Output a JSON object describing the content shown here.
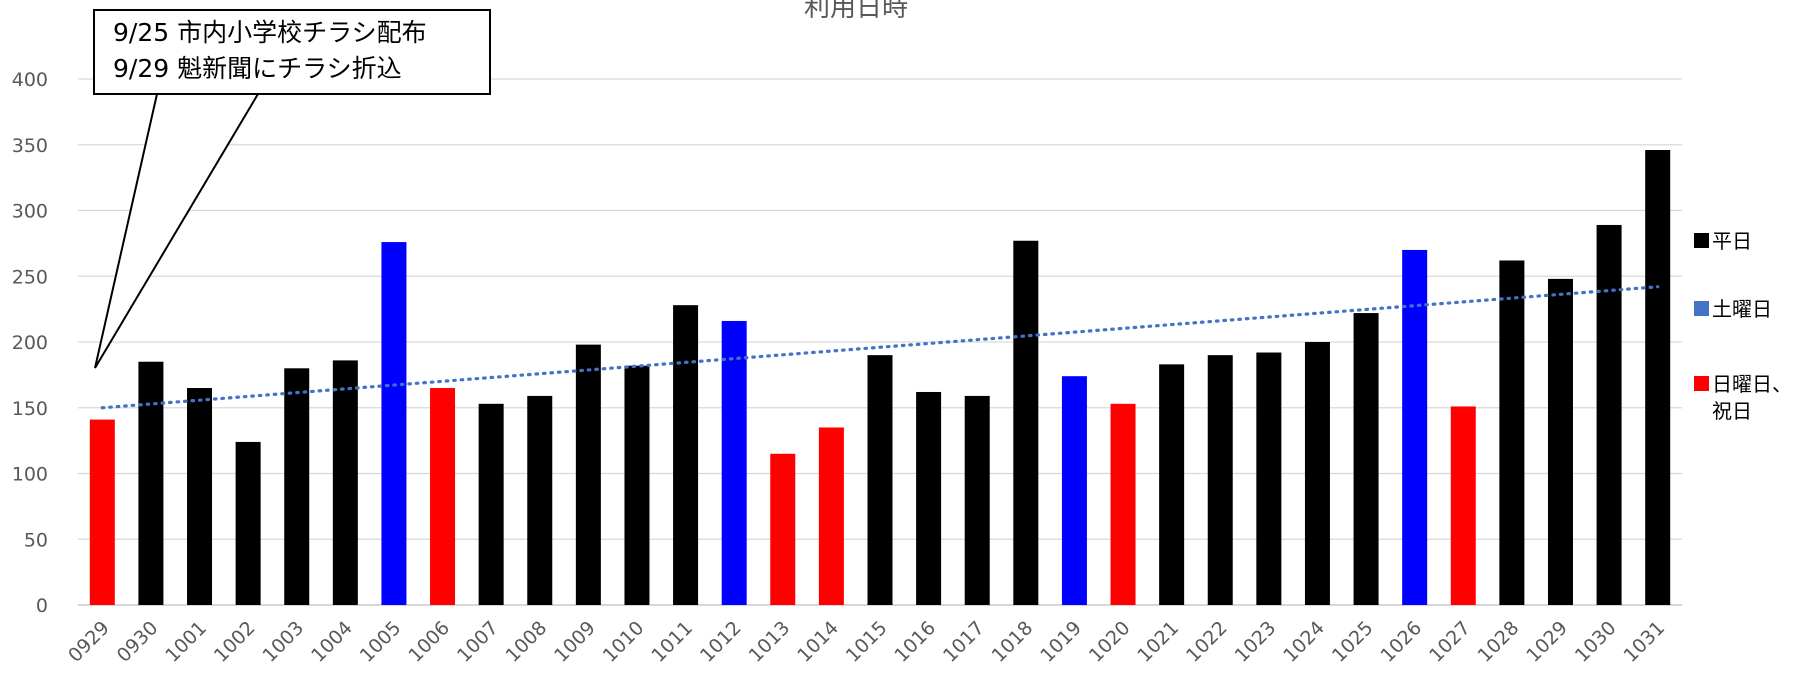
{
  "chart_data": {
    "type": "bar",
    "title": "利用日時",
    "categories": [
      "0929",
      "0930",
      "1001",
      "1002",
      "1003",
      "1004",
      "1005",
      "1006",
      "1007",
      "1008",
      "1009",
      "1010",
      "1011",
      "1012",
      "1013",
      "1014",
      "1015",
      "1016",
      "1017",
      "1018",
      "1019",
      "1020",
      "1021",
      "1022",
      "1023",
      "1024",
      "1025",
      "1026",
      "1027",
      "1028",
      "1029",
      "1030",
      "1031"
    ],
    "values": [
      141,
      185,
      165,
      124,
      180,
      186,
      276,
      165,
      153,
      159,
      198,
      182,
      228,
      216,
      115,
      135,
      190,
      162,
      159,
      277,
      174,
      153,
      183,
      190,
      192,
      200,
      222,
      270,
      151,
      262,
      248,
      289,
      346
    ],
    "day_types": [
      "holiday",
      "weekday",
      "weekday",
      "weekday",
      "weekday",
      "weekday",
      "saturday",
      "holiday",
      "weekday",
      "weekday",
      "weekday",
      "weekday",
      "weekday",
      "saturday",
      "holiday",
      "holiday",
      "weekday",
      "weekday",
      "weekday",
      "weekday",
      "saturday",
      "holiday",
      "weekday",
      "weekday",
      "weekday",
      "weekday",
      "weekday",
      "saturday",
      "holiday",
      "weekday",
      "weekday",
      "weekday",
      "weekday"
    ],
    "ylim": [
      0,
      400
    ],
    "yticks": [
      0,
      50,
      100,
      150,
      200,
      250,
      300,
      350,
      400
    ],
    "grid": true,
    "trendline": {
      "type": "linear",
      "start": 150,
      "end": 242,
      "color": "#4472C4",
      "style": "dotted"
    },
    "legend": {
      "position": "right",
      "items": [
        {
          "key": "weekday",
          "label": "平日",
          "color": "#000000"
        },
        {
          "key": "saturday",
          "label": "土曜日",
          "color": "#4472C4"
        },
        {
          "key": "holiday",
          "label": "日曜日、祝日",
          "color": "#FF0000"
        }
      ]
    },
    "bar_colors": {
      "weekday": "#000000",
      "saturday": "#0000FF",
      "holiday": "#FF0000"
    },
    "annotation": {
      "lines": [
        "9/25 市内小学校チラシ配布",
        "9/29 魁新聞にチラシ折込"
      ]
    }
  }
}
